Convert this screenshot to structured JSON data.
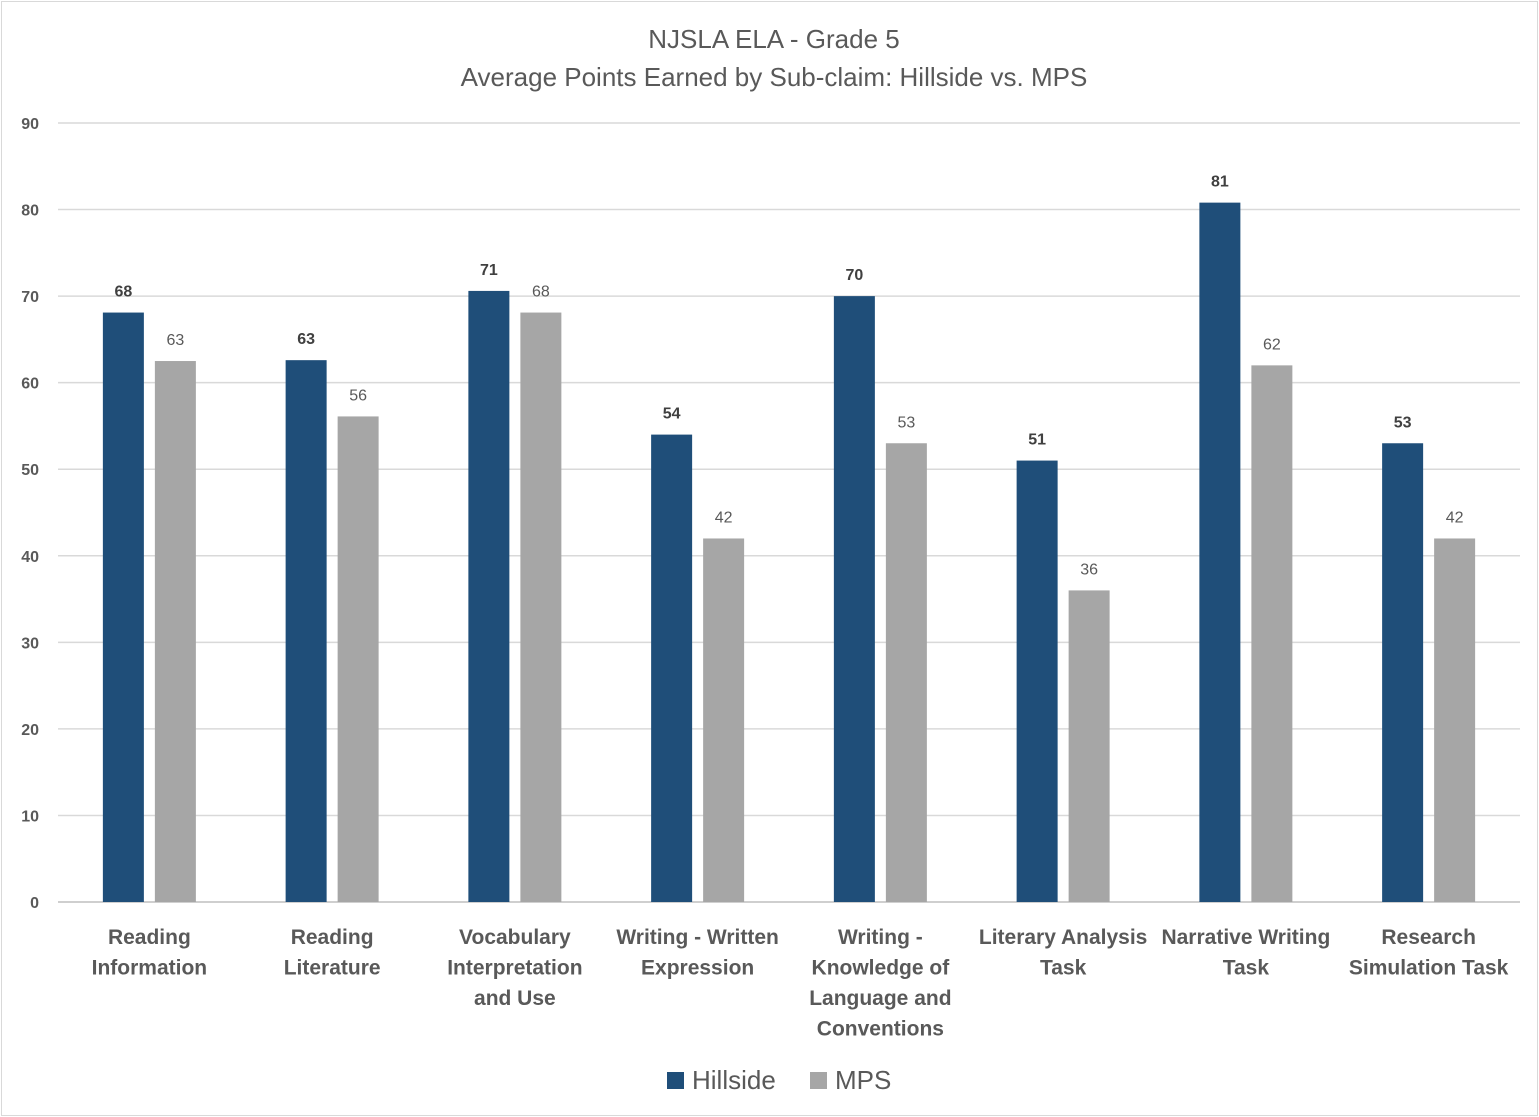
{
  "chart_data": {
    "type": "bar",
    "title": "NJSLA ELA - Grade 5",
    "subtitle": "Average Points Earned by Sub-claim: Hillside vs. MPS",
    "xlabel": "",
    "ylabel": "",
    "ylim": [
      0,
      90
    ],
    "yticks": [
      "0",
      "10",
      "20",
      "30",
      "40",
      "50",
      "60",
      "70",
      "80",
      "90"
    ],
    "grid": true,
    "legend_position": "bottom",
    "categories": [
      [
        "Reading",
        "Information"
      ],
      [
        "Reading",
        "Literature"
      ],
      [
        "Vocabulary",
        "Interpretation",
        "and Use"
      ],
      [
        "Writing - Written",
        "Expression"
      ],
      [
        "Writing -",
        "Knowledge of",
        "Language and",
        "Conventions"
      ],
      [
        "Literary Analysis",
        "Task"
      ],
      [
        "Narrative Writing",
        "Task"
      ],
      [
        "Research",
        "Simulation Task"
      ]
    ],
    "series": [
      {
        "name": "Hillside",
        "color": "#1f4e79",
        "values": [
          68.1,
          62.6,
          70.6,
          54,
          70,
          51,
          80.8,
          53
        ],
        "labels": [
          "68",
          "63",
          "71",
          "54",
          "70",
          "51",
          "81",
          "53"
        ]
      },
      {
        "name": "MPS",
        "color": "#a6a6a6",
        "values": [
          62.5,
          56.1,
          68.1,
          42,
          53,
          36,
          62,
          42
        ],
        "labels": [
          "63",
          "56",
          "68",
          "42",
          "53",
          "36",
          "62",
          "42"
        ]
      }
    ]
  }
}
